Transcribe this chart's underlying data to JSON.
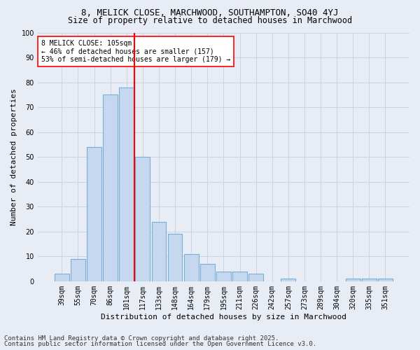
{
  "title1": "8, MELICK CLOSE, MARCHWOOD, SOUTHAMPTON, SO40 4YJ",
  "title2": "Size of property relative to detached houses in Marchwood",
  "xlabel": "Distribution of detached houses by size in Marchwood",
  "ylabel": "Number of detached properties",
  "categories": [
    "39sqm",
    "55sqm",
    "70sqm",
    "86sqm",
    "101sqm",
    "117sqm",
    "133sqm",
    "148sqm",
    "164sqm",
    "179sqm",
    "195sqm",
    "211sqm",
    "226sqm",
    "242sqm",
    "257sqm",
    "273sqm",
    "289sqm",
    "304sqm",
    "320sqm",
    "335sqm",
    "351sqm"
  ],
  "values": [
    3,
    9,
    54,
    75,
    78,
    50,
    24,
    19,
    11,
    7,
    4,
    4,
    3,
    0,
    1,
    0,
    0,
    0,
    1,
    1,
    1
  ],
  "bar_color": "#c5d8f0",
  "bar_edge_color": "#7aacd6",
  "vline_x_idx": 4,
  "vline_color": "red",
  "annotation_text": "8 MELICK CLOSE: 105sqm\n← 46% of detached houses are smaller (157)\n53% of semi-detached houses are larger (179) →",
  "annotation_box_color": "white",
  "annotation_box_edge_color": "red",
  "ylim": [
    0,
    100
  ],
  "yticks": [
    0,
    10,
    20,
    30,
    40,
    50,
    60,
    70,
    80,
    90,
    100
  ],
  "grid_color": "#c8d4e8",
  "bg_color": "#e8edf5",
  "footer1": "Contains HM Land Registry data © Crown copyright and database right 2025.",
  "footer2": "Contains public sector information licensed under the Open Government Licence v3.0.",
  "title1_fontsize": 9,
  "title2_fontsize": 8.5,
  "axis_label_fontsize": 8,
  "tick_fontsize": 7,
  "annotation_fontsize": 7,
  "footer_fontsize": 6.5
}
